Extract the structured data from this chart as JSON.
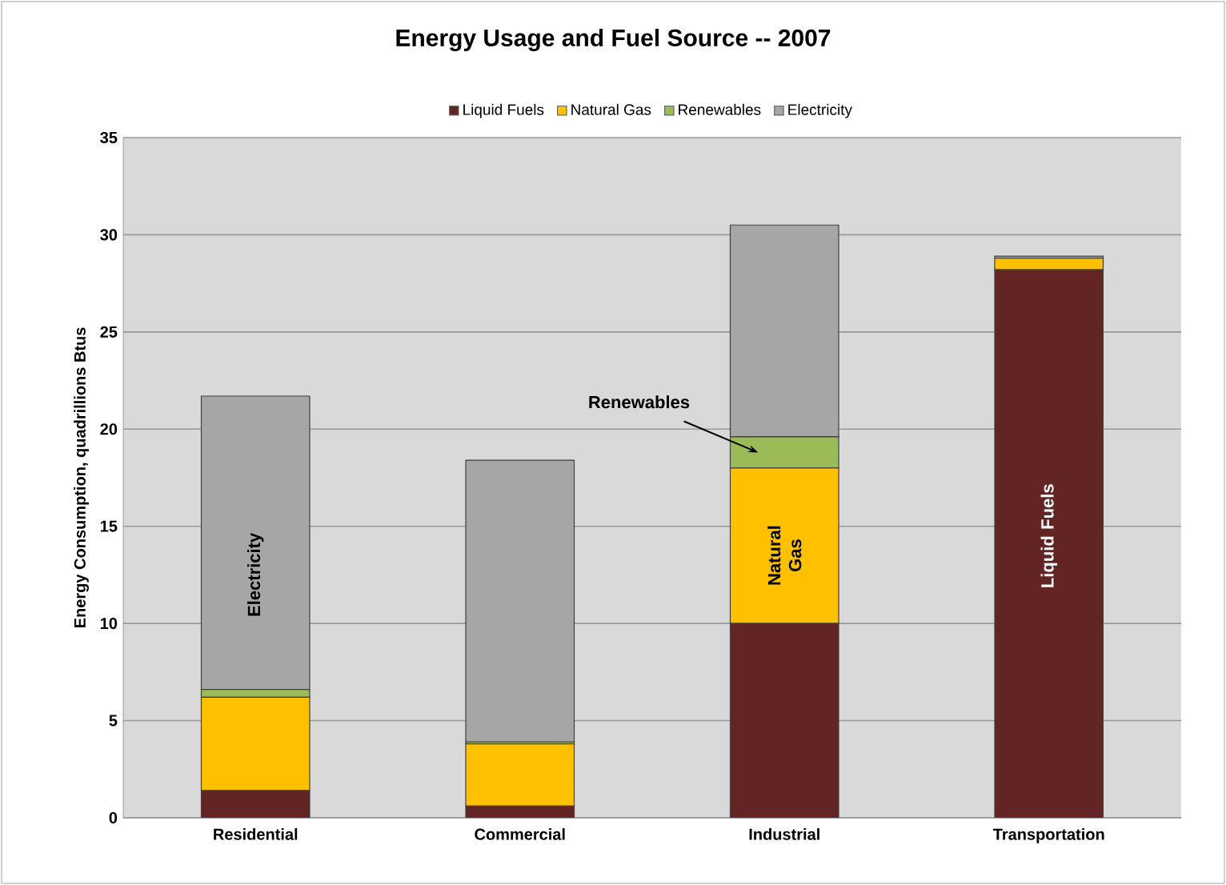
{
  "chart_data": {
    "type": "bar",
    "stacked": true,
    "title": "Energy Usage and Fuel Source -- 2007",
    "ylabel": "Energy Consumption, quadrillions Btus",
    "categories": [
      "Residential",
      "Commercial",
      "Industrial",
      "Transportation"
    ],
    "series": [
      {
        "name": "Liquid Fuels",
        "color": "#632523",
        "values": [
          1.4,
          0.6,
          10.0,
          28.2
        ]
      },
      {
        "name": "Natural Gas",
        "color": "#ffc000",
        "values": [
          4.8,
          3.2,
          8.0,
          0.6
        ]
      },
      {
        "name": "Renewables",
        "color": "#9bbb59",
        "values": [
          0.4,
          0.1,
          1.6,
          0
        ]
      },
      {
        "name": "Electricity",
        "color": "#a6a6a6",
        "values": [
          15.1,
          14.5,
          10.9,
          0.1
        ]
      }
    ],
    "ylim": [
      0,
      35
    ],
    "yticks": [
      0,
      5,
      10,
      15,
      20,
      25,
      30,
      35
    ],
    "grid": "y",
    "legend": "top",
    "annotations": [
      "Electricity",
      "Renewables",
      "Natural Gas",
      "Liquid Fuels"
    ]
  }
}
